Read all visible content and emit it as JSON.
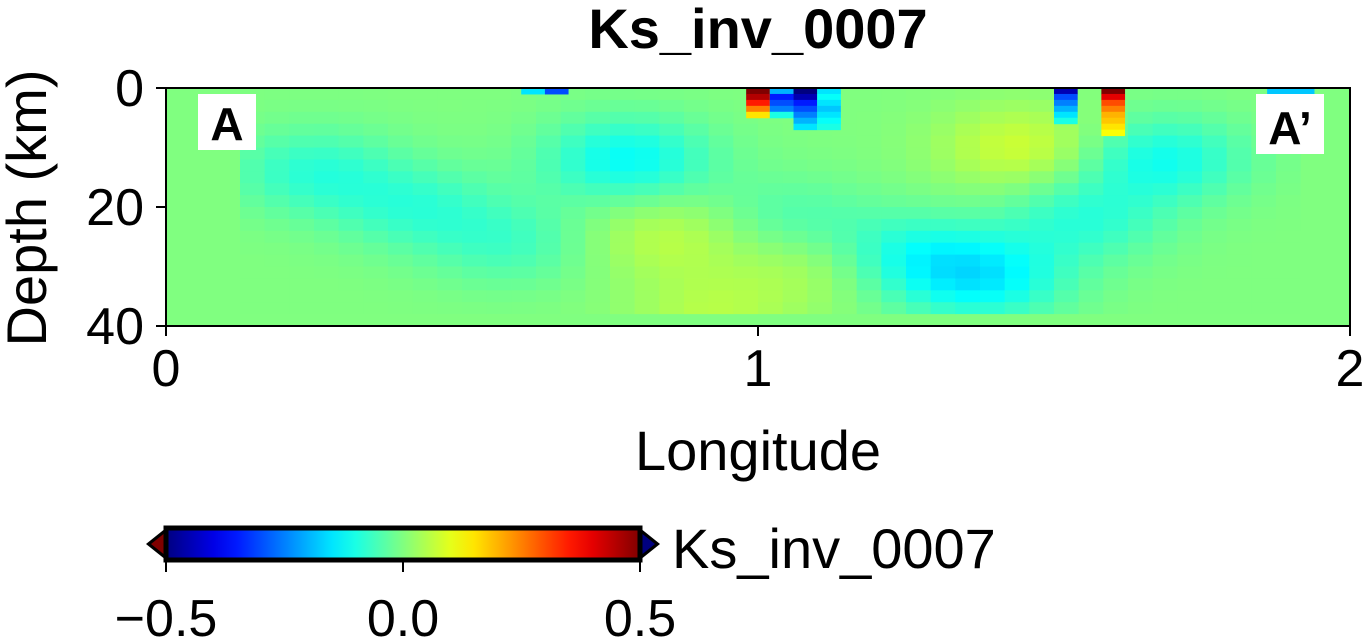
{
  "chart_data": {
    "type": "heatmap",
    "title": "Ks_inv_0007",
    "xlabel": "Longitude",
    "ylabel": "Depth (km)",
    "xlim": [
      0,
      2
    ],
    "ylim": [
      40,
      0
    ],
    "x_ticks": [
      "0",
      "1",
      "2"
    ],
    "y_ticks": [
      "0",
      "20",
      "40"
    ],
    "profile_markers": {
      "start": "A",
      "end": "A’"
    },
    "colorbar": {
      "label": "Ks_inv_0007",
      "range": [
        -0.5,
        0.5
      ],
      "ticks": [
        "−0.5",
        "0.0",
        "0.5"
      ],
      "colormap": "jet_reversed",
      "extend": "both"
    },
    "background_value": 0.0,
    "anomalies": [
      {
        "x": 0.25,
        "depth": 14,
        "value": -0.08,
        "comment": "broad U-shaped band"
      },
      {
        "x": 0.42,
        "depth": 20,
        "value": -0.07
      },
      {
        "x": 0.58,
        "depth": 26,
        "value": -0.06
      },
      {
        "x": 0.78,
        "depth": 12,
        "value": -0.12
      },
      {
        "x": 1.05,
        "depth": 22,
        "value": -0.05
      },
      {
        "x": 1.25,
        "depth": 28,
        "value": -0.09
      },
      {
        "x": 1.38,
        "depth": 32,
        "value": -0.13
      },
      {
        "x": 1.55,
        "depth": 22,
        "value": -0.08
      },
      {
        "x": 1.68,
        "depth": 12,
        "value": -0.11
      },
      {
        "x": 0.85,
        "depth": 25,
        "value": 0.06
      },
      {
        "x": 1.1,
        "depth": 30,
        "value": 0.05
      },
      {
        "x": 1.45,
        "depth": 10,
        "value": 0.08
      },
      {
        "x": 0.92,
        "depth": 38,
        "value": 0.05
      }
    ],
    "near_surface_blocks": [
      {
        "x0": 0.98,
        "x1": 1.02,
        "values": [
          0.5,
          0.45,
          0.35,
          0.25,
          0.15
        ]
      },
      {
        "x0": 1.02,
        "x1": 1.06,
        "values": [
          -0.2,
          -0.35,
          -0.3,
          -0.25,
          -0.1
        ]
      },
      {
        "x0": 1.06,
        "x1": 1.1,
        "values": [
          -0.5,
          -0.45,
          -0.35,
          -0.3,
          -0.25,
          -0.2,
          -0.15
        ]
      },
      {
        "x0": 1.1,
        "x1": 1.14,
        "values": [
          -0.15,
          -0.12,
          -0.15,
          -0.18,
          -0.15,
          -0.12,
          -0.1
        ]
      },
      {
        "x0": 1.5,
        "x1": 1.54,
        "values": [
          -0.45,
          -0.3,
          -0.25,
          -0.2,
          -0.15,
          -0.1
        ]
      },
      {
        "x0": 1.58,
        "x1": 1.62,
        "values": [
          0.5,
          0.4,
          0.3,
          0.25,
          0.2,
          0.18,
          0.15,
          0.12
        ]
      },
      {
        "x0": 0.6,
        "x1": 0.64,
        "values": [
          -0.15
        ]
      },
      {
        "x0": 0.64,
        "x1": 0.68,
        "values": [
          -0.3
        ]
      },
      {
        "x0": 1.86,
        "x1": 1.94,
        "values": [
          -0.18,
          -0.15
        ]
      }
    ]
  }
}
